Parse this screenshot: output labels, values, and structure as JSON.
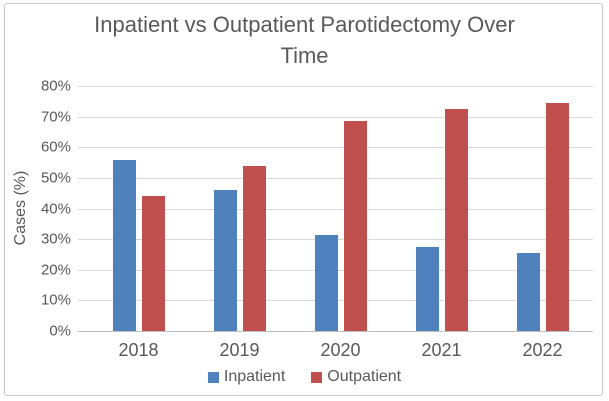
{
  "chart_data": {
    "type": "bar",
    "title": "Inpatient vs Outpatient Parotidectomy Over Time",
    "ylabel": "Cases (%)",
    "xlabel": "",
    "categories": [
      "2018",
      "2019",
      "2020",
      "2021",
      "2022"
    ],
    "series": [
      {
        "name": "Inpatient",
        "color": "#4F81BD",
        "values": [
          56,
          46,
          31.5,
          27.5,
          25.5
        ]
      },
      {
        "name": "Outpatient",
        "color": "#C0504D",
        "values": [
          44,
          54,
          68.5,
          72.5,
          74.5
        ]
      }
    ],
    "ylim": [
      0,
      80
    ],
    "ytick_step": 10,
    "ytick_labels": [
      "0%",
      "10%",
      "20%",
      "30%",
      "40%",
      "50%",
      "60%",
      "70%",
      "80%"
    ],
    "grid": true,
    "legend_position": "bottom"
  },
  "colors": {
    "text": "#595959",
    "gridline": "#D9D9D9",
    "axis_line": "#BFBFBF",
    "frame_border": "#C9C9C9",
    "background": "#FFFFFF"
  }
}
